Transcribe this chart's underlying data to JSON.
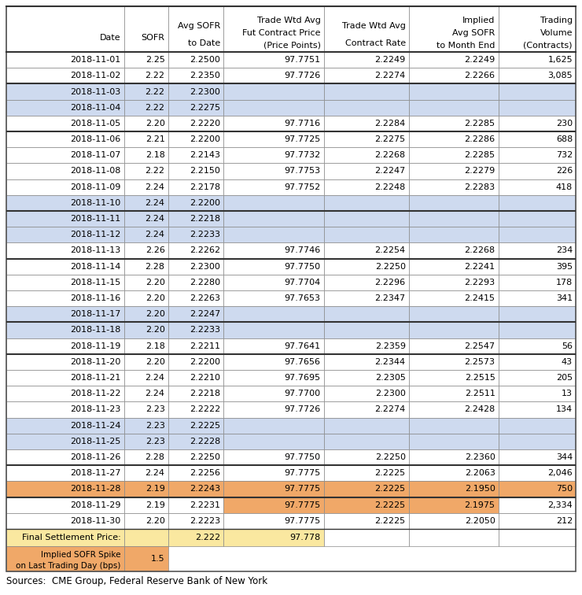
{
  "source": "Sources:  CME Group, Federal Reserve Bank of New York",
  "headers": [
    "Date",
    "SOFR",
    "Avg SOFR\nto Date",
    "Trade Wtd Avg\nFut Contract Price\n(Price Points)",
    "Trade Wtd Avg\nContract Rate",
    "Implied\nAvg SOFR\nto Month End",
    "Trading\nVolume\n(Contracts)"
  ],
  "rows": [
    [
      "2018-11-01",
      "2.25",
      "2.2500",
      "97.7751",
      "2.2249",
      "2.2249",
      "1,625"
    ],
    [
      "2018-11-02",
      "2.22",
      "2.2350",
      "97.7726",
      "2.2274",
      "2.2266",
      "3,085"
    ],
    [
      "2018-11-03",
      "2.22",
      "2.2300",
      "",
      "",
      "",
      ""
    ],
    [
      "2018-11-04",
      "2.22",
      "2.2275",
      "",
      "",
      "",
      ""
    ],
    [
      "2018-11-05",
      "2.20",
      "2.2220",
      "97.7716",
      "2.2284",
      "2.2285",
      "230"
    ],
    [
      "2018-11-06",
      "2.21",
      "2.2200",
      "97.7725",
      "2.2275",
      "2.2286",
      "688"
    ],
    [
      "2018-11-07",
      "2.18",
      "2.2143",
      "97.7732",
      "2.2268",
      "2.2285",
      "732"
    ],
    [
      "2018-11-08",
      "2.22",
      "2.2150",
      "97.7753",
      "2.2247",
      "2.2279",
      "226"
    ],
    [
      "2018-11-09",
      "2.24",
      "2.2178",
      "97.7752",
      "2.2248",
      "2.2283",
      "418"
    ],
    [
      "2018-11-10",
      "2.24",
      "2.2200",
      "",
      "",
      "",
      ""
    ],
    [
      "2018-11-11",
      "2.24",
      "2.2218",
      "",
      "",
      "",
      ""
    ],
    [
      "2018-11-12",
      "2.24",
      "2.2233",
      "",
      "",
      "",
      ""
    ],
    [
      "2018-11-13",
      "2.26",
      "2.2262",
      "97.7746",
      "2.2254",
      "2.2268",
      "234"
    ],
    [
      "2018-11-14",
      "2.28",
      "2.2300",
      "97.7750",
      "2.2250",
      "2.2241",
      "395"
    ],
    [
      "2018-11-15",
      "2.20",
      "2.2280",
      "97.7704",
      "2.2296",
      "2.2293",
      "178"
    ],
    [
      "2018-11-16",
      "2.20",
      "2.2263",
      "97.7653",
      "2.2347",
      "2.2415",
      "341"
    ],
    [
      "2018-11-17",
      "2.20",
      "2.2247",
      "",
      "",
      "",
      ""
    ],
    [
      "2018-11-18",
      "2.20",
      "2.2233",
      "",
      "",
      "",
      ""
    ],
    [
      "2018-11-19",
      "2.18",
      "2.2211",
      "97.7641",
      "2.2359",
      "2.2547",
      "56"
    ],
    [
      "2018-11-20",
      "2.20",
      "2.2200",
      "97.7656",
      "2.2344",
      "2.2573",
      "43"
    ],
    [
      "2018-11-21",
      "2.24",
      "2.2210",
      "97.7695",
      "2.2305",
      "2.2515",
      "205"
    ],
    [
      "2018-11-22",
      "2.24",
      "2.2218",
      "97.7700",
      "2.2300",
      "2.2511",
      "13"
    ],
    [
      "2018-11-23",
      "2.23",
      "2.2222",
      "97.7726",
      "2.2274",
      "2.2428",
      "134"
    ],
    [
      "2018-11-24",
      "2.23",
      "2.2225",
      "",
      "",
      "",
      ""
    ],
    [
      "2018-11-25",
      "2.23",
      "2.2228",
      "",
      "",
      "",
      ""
    ],
    [
      "2018-11-26",
      "2.28",
      "2.2250",
      "97.7750",
      "2.2250",
      "2.2360",
      "344"
    ],
    [
      "2018-11-27",
      "2.24",
      "2.2256",
      "97.7775",
      "2.2225",
      "2.2063",
      "2,046"
    ],
    [
      "2018-11-28",
      "2.19",
      "2.2243",
      "97.7775",
      "2.2225",
      "2.1950",
      "750"
    ],
    [
      "2018-11-29",
      "2.19",
      "2.2231",
      "97.7775",
      "2.2225",
      "2.1975",
      "2,334"
    ],
    [
      "2018-11-30",
      "2.20",
      "2.2223",
      "97.7775",
      "2.2225",
      "2.2050",
      "212"
    ]
  ],
  "weekend_rows": [
    2,
    3,
    9,
    10,
    11,
    16,
    17,
    23,
    24
  ],
  "highlight_rows_orange": [
    27,
    28
  ],
  "highlight_row_date_orange": [
    27
  ],
  "row_29_orange_cols": [
    3,
    4,
    5
  ],
  "final_settlement": [
    "Final Settlement Price:",
    "",
    "2.222",
    "97.778",
    "",
    "",
    ""
  ],
  "implied_spike_label": "Implied SOFR Spike\non Last Trading Day (bps)",
  "implied_spike_value": "1.5",
  "row_bg_normal": "#FFFFFF",
  "row_bg_weekend": "#CEDAEF",
  "row_bg_highlight": "#F0A868",
  "header_bg": "#FFFFFF",
  "final_bg": "#FAE8A0",
  "spike_bg": "#F0A868",
  "border_color": "#888888",
  "thick_border_color": "#333333",
  "text_color": "#000000",
  "col_widths_rel": [
    1.55,
    0.58,
    0.73,
    1.32,
    1.12,
    1.18,
    1.02
  ],
  "thick_border_after_rows": [
    1,
    4,
    9,
    12,
    16,
    18,
    25,
    27
  ]
}
